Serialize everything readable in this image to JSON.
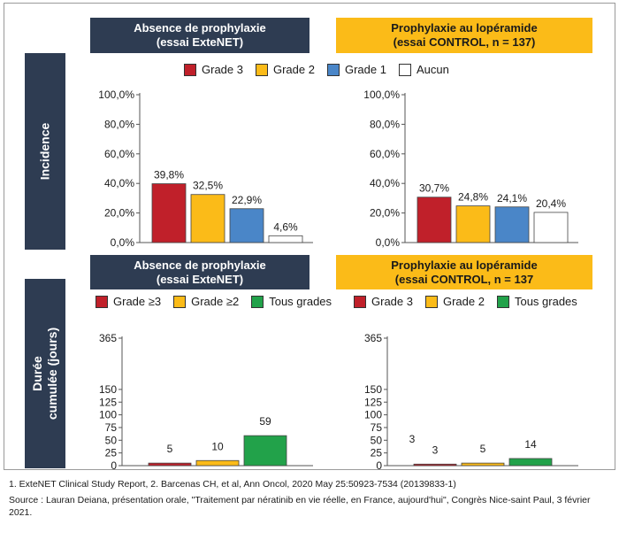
{
  "side_labels": {
    "incidence": "Incidence",
    "duree_line1": "Durée",
    "duree_line2": "cumulée (jours)"
  },
  "headers": {
    "top_left_1": "Absence de prophylaxie",
    "top_left_2": "(essai ExteNET)",
    "top_right_1": "Prophylaxie au lopéramide",
    "top_right_2": "(essai CONTROL, n = 137)",
    "bottom_left_1": "Absence de prophylaxie",
    "bottom_left_2": "(essai ExteNET)",
    "bottom_right_1": "Prophylaxie au lopéramide",
    "bottom_right_2": "(essai CONTROL, n = 137"
  },
  "legends": {
    "top": [
      {
        "label": "Grade 3",
        "color": "#c0202a"
      },
      {
        "label": "Grade 2",
        "color": "#fbbb18"
      },
      {
        "label": "Grade 1",
        "color": "#4a86c8"
      },
      {
        "label": "Aucun",
        "color": "#ffffff"
      }
    ],
    "bottom_left": [
      {
        "label": "Grade ≥3",
        "color": "#c0202a"
      },
      {
        "label": "Grade ≥2",
        "color": "#fbbb18"
      },
      {
        "label": "Tous grades",
        "color": "#22a24a"
      }
    ],
    "bottom_right": [
      {
        "label": "Grade 3",
        "color": "#c0202a"
      },
      {
        "label": "Grade 2",
        "color": "#fbbb18"
      },
      {
        "label": "Tous grades",
        "color": "#22a24a"
      }
    ]
  },
  "chart_data": [
    {
      "type": "bar",
      "id": "incidence-extenet",
      "categories": [
        "Grade 3",
        "Grade 2",
        "Grade 1",
        "Aucun"
      ],
      "values": [
        39.8,
        32.5,
        22.9,
        4.6
      ],
      "value_labels": [
        "39,8%",
        "32,5%",
        "22,9%",
        "4,6%"
      ],
      "colors": [
        "#c0202a",
        "#fbbb18",
        "#4a86c8",
        "#ffffff"
      ],
      "yticks": [
        0,
        20,
        40,
        60,
        80,
        100
      ],
      "ytick_labels": [
        "0,0%",
        "20,0%",
        "40,0%",
        "60,0%",
        "80,0%",
        "100,0%"
      ],
      "ylim": [
        0,
        100
      ],
      "ylabel": "Incidence"
    },
    {
      "type": "bar",
      "id": "incidence-control",
      "categories": [
        "Grade 3",
        "Grade 2",
        "Grade 1",
        "Aucun"
      ],
      "values": [
        30.7,
        24.8,
        24.1,
        20.4
      ],
      "value_labels": [
        "30,7%",
        "24,8%",
        "24,1%",
        "20,4%"
      ],
      "colors": [
        "#c0202a",
        "#fbbb18",
        "#4a86c8",
        "#ffffff"
      ],
      "yticks": [
        0,
        20,
        40,
        60,
        80,
        100
      ],
      "ytick_labels": [
        "0,0%",
        "20,0%",
        "40,0%",
        "60,0%",
        "80,0%",
        "100,0%"
      ],
      "ylim": [
        0,
        100
      ],
      "ylabel": "Incidence"
    },
    {
      "type": "bar",
      "id": "duree-extenet",
      "categories": [
        "Grade ≥3",
        "Grade ≥2",
        "Tous grades"
      ],
      "values": [
        5,
        10,
        59
      ],
      "value_labels": [
        "5",
        "10",
        "59"
      ],
      "colors": [
        "#c0202a",
        "#fbbb18",
        "#22a24a"
      ],
      "yticks": [
        0,
        25,
        50,
        75,
        100,
        125,
        150,
        365
      ],
      "ytick_labels": [
        "0",
        "25",
        "50",
        "75",
        "100",
        "125",
        "150",
        "365"
      ],
      "ylim": [
        0,
        365
      ],
      "ylabel": "Durée cumulée (jours)"
    },
    {
      "type": "bar",
      "id": "duree-control",
      "categories": [
        "Grade 3",
        "Grade 2",
        "Tous grades"
      ],
      "values": [
        3,
        5,
        14
      ],
      "value_labels": [
        "3",
        "5",
        "14"
      ],
      "extra_labels": [
        "3"
      ],
      "colors": [
        "#c0202a",
        "#fbbb18",
        "#22a24a"
      ],
      "yticks": [
        0,
        25,
        50,
        75,
        100,
        125,
        150,
        365
      ],
      "ytick_labels": [
        "0",
        "25",
        "50",
        "75",
        "100",
        "125",
        "150",
        "365"
      ],
      "ylim": [
        0,
        365
      ],
      "ylabel": "Durée cumulée (jours)"
    }
  ],
  "footnotes": {
    "refs": "1. ExteNET Clinical Study Report, 2. Barcenas CH, et al, Ann Oncol, 2020 May 25:50923-7534 (20139833-1)",
    "source": "Source : Lauran Deiana, présentation orale, \"Traitement par nératinib en vie réelle, en France, aujourd'hui\", Congrès Nice-saint Paul, 3 février 2021."
  }
}
